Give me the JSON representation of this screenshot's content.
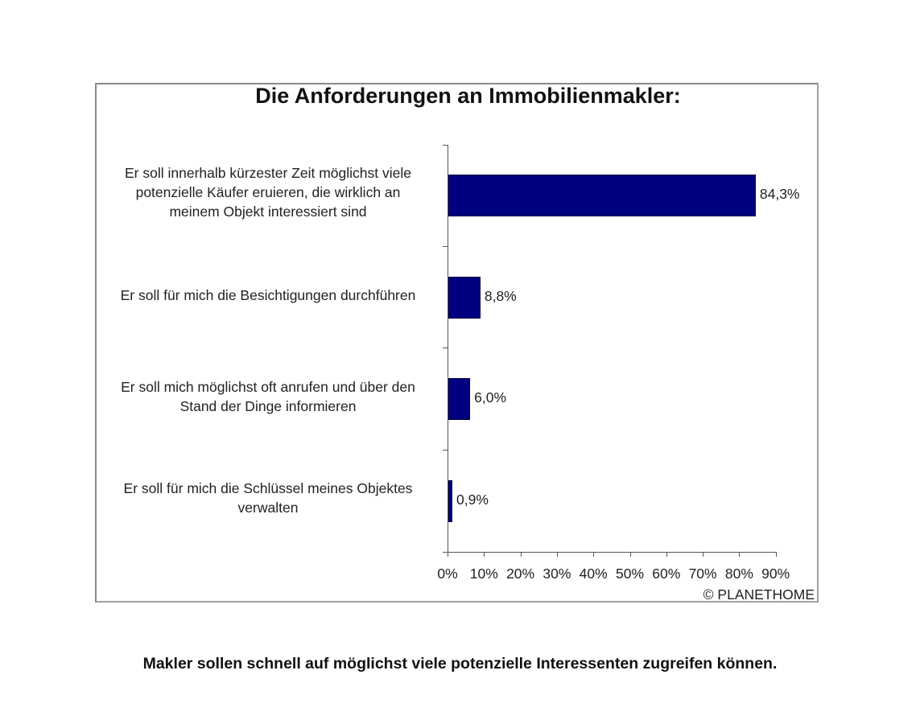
{
  "chart_data": {
    "type": "bar",
    "orientation": "horizontal",
    "title": "Die Anforderungen an Immobilienmakler:",
    "categories": [
      "Er soll innerhalb kürzester Zeit möglichst viele potenzielle Käufer eruieren, die wirklich an meinem Objekt interessiert sind",
      "Er soll für mich die Besichtigungen durchführen",
      "Er soll mich möglichst oft anrufen und über den Stand der Dinge informieren",
      "Er soll für mich die Schlüssel meines Objektes verwalten"
    ],
    "values": [
      84.3,
      8.8,
      6.0,
      0.9
    ],
    "value_labels": [
      "84,3%",
      "8,8%",
      "6,0%",
      "0,9%"
    ],
    "xlabel": "",
    "ylabel": "",
    "xlim": [
      0,
      90
    ],
    "x_ticks": [
      "0%",
      "10%",
      "20%",
      "30%",
      "40%",
      "50%",
      "60%",
      "70%",
      "80%",
      "90%"
    ],
    "grid": false,
    "legend": null,
    "bar_color": "#000080",
    "source": "© PLANETHOME"
  },
  "chart": {
    "title": "Die Anforderungen an Immobilienmakler:",
    "categories": [
      {
        "lines": [
          "Er soll innerhalb kürzester Zeit möglichst viele",
          "potenzielle Käufer eruieren, die wirklich an",
          "meinem Objekt interessiert sind"
        ],
        "value": 84.3,
        "label": "84,3%"
      },
      {
        "lines": [
          "Er soll für mich die Besichtigungen durchführen"
        ],
        "value": 8.8,
        "label": "8,8%"
      },
      {
        "lines": [
          "Er soll mich möglichst oft anrufen und über den",
          "Stand der Dinge informieren"
        ],
        "value": 6.0,
        "label": "6,0%"
      },
      {
        "lines": [
          "Er soll für mich die Schlüssel meines Objektes",
          "verwalten"
        ],
        "value": 0.9,
        "label": "0,9%"
      }
    ],
    "x_ticks": [
      "0%",
      "10%",
      "20%",
      "30%",
      "40%",
      "50%",
      "60%",
      "70%",
      "80%",
      "90%"
    ],
    "copyright": "© PLANETHOME"
  },
  "caption": "Makler sollen schnell auf möglichst viele potenzielle Interessenten zugreifen können."
}
